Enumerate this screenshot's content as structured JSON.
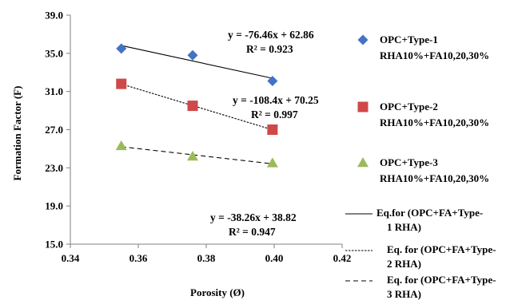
{
  "chart_data": {
    "type": "scatter",
    "xlabel": "Porosity (Ø)",
    "ylabel": "Formation Factor (F)",
    "xlim": [
      0.34,
      0.42
    ],
    "ylim": [
      15.0,
      39.0
    ],
    "xticks": [
      "0.34",
      "0.36",
      "0.38",
      "0.40",
      "0.42"
    ],
    "yticks": [
      "15.0",
      "19.0",
      "23.0",
      "27.0",
      "31.0",
      "35.0",
      "39.0"
    ],
    "grid": false,
    "legend_position": "right",
    "series": [
      {
        "name_lines": [
          "OPC+Type-1",
          "RHA10%+FA10,20,30%"
        ],
        "marker": "diamond",
        "color": "#4472C4",
        "x": [
          0.355,
          0.376,
          0.3995
        ],
        "y": [
          35.5,
          34.8,
          32.1
        ],
        "fit_name_lines": [
          "Eq.for (OPC+FA+Type-",
          "1 RHA)"
        ],
        "fit_dash": "solid",
        "fit_x": [
          0.355,
          0.3995
        ],
        "equation": "y = -76.46x + 62.86",
        "r2": "R² = 0.923"
      },
      {
        "name_lines": [
          "OPC+Type-2",
          "RHA10%+FA10,20,30%"
        ],
        "marker": "square",
        "color": "#D04848",
        "x": [
          0.355,
          0.376,
          0.3995
        ],
        "y": [
          31.8,
          29.5,
          27.0
        ],
        "fit_name_lines": [
          "Eq. for (OPC+FA+Type-",
          "2 RHA)"
        ],
        "fit_dash": "dotted",
        "fit_x": [
          0.355,
          0.3995
        ],
        "equation": "y = -108.4x + 70.25",
        "r2": "R² = 0.997"
      },
      {
        "name_lines": [
          "OPC+Type-3",
          "RHA10%+FA10,20,30%"
        ],
        "marker": "triangle",
        "color": "#9BBB59",
        "x": [
          0.355,
          0.376,
          0.3995
        ],
        "y": [
          25.3,
          24.2,
          23.5
        ],
        "fit_name_lines": [
          "Eq. for (OPC+FA+Type-",
          "3 RHA)"
        ],
        "fit_dash": "dashed",
        "fit_x": [
          0.355,
          0.3995
        ],
        "equation": "y = -38.26x + 38.82",
        "r2": "R² = 0.947"
      }
    ]
  }
}
